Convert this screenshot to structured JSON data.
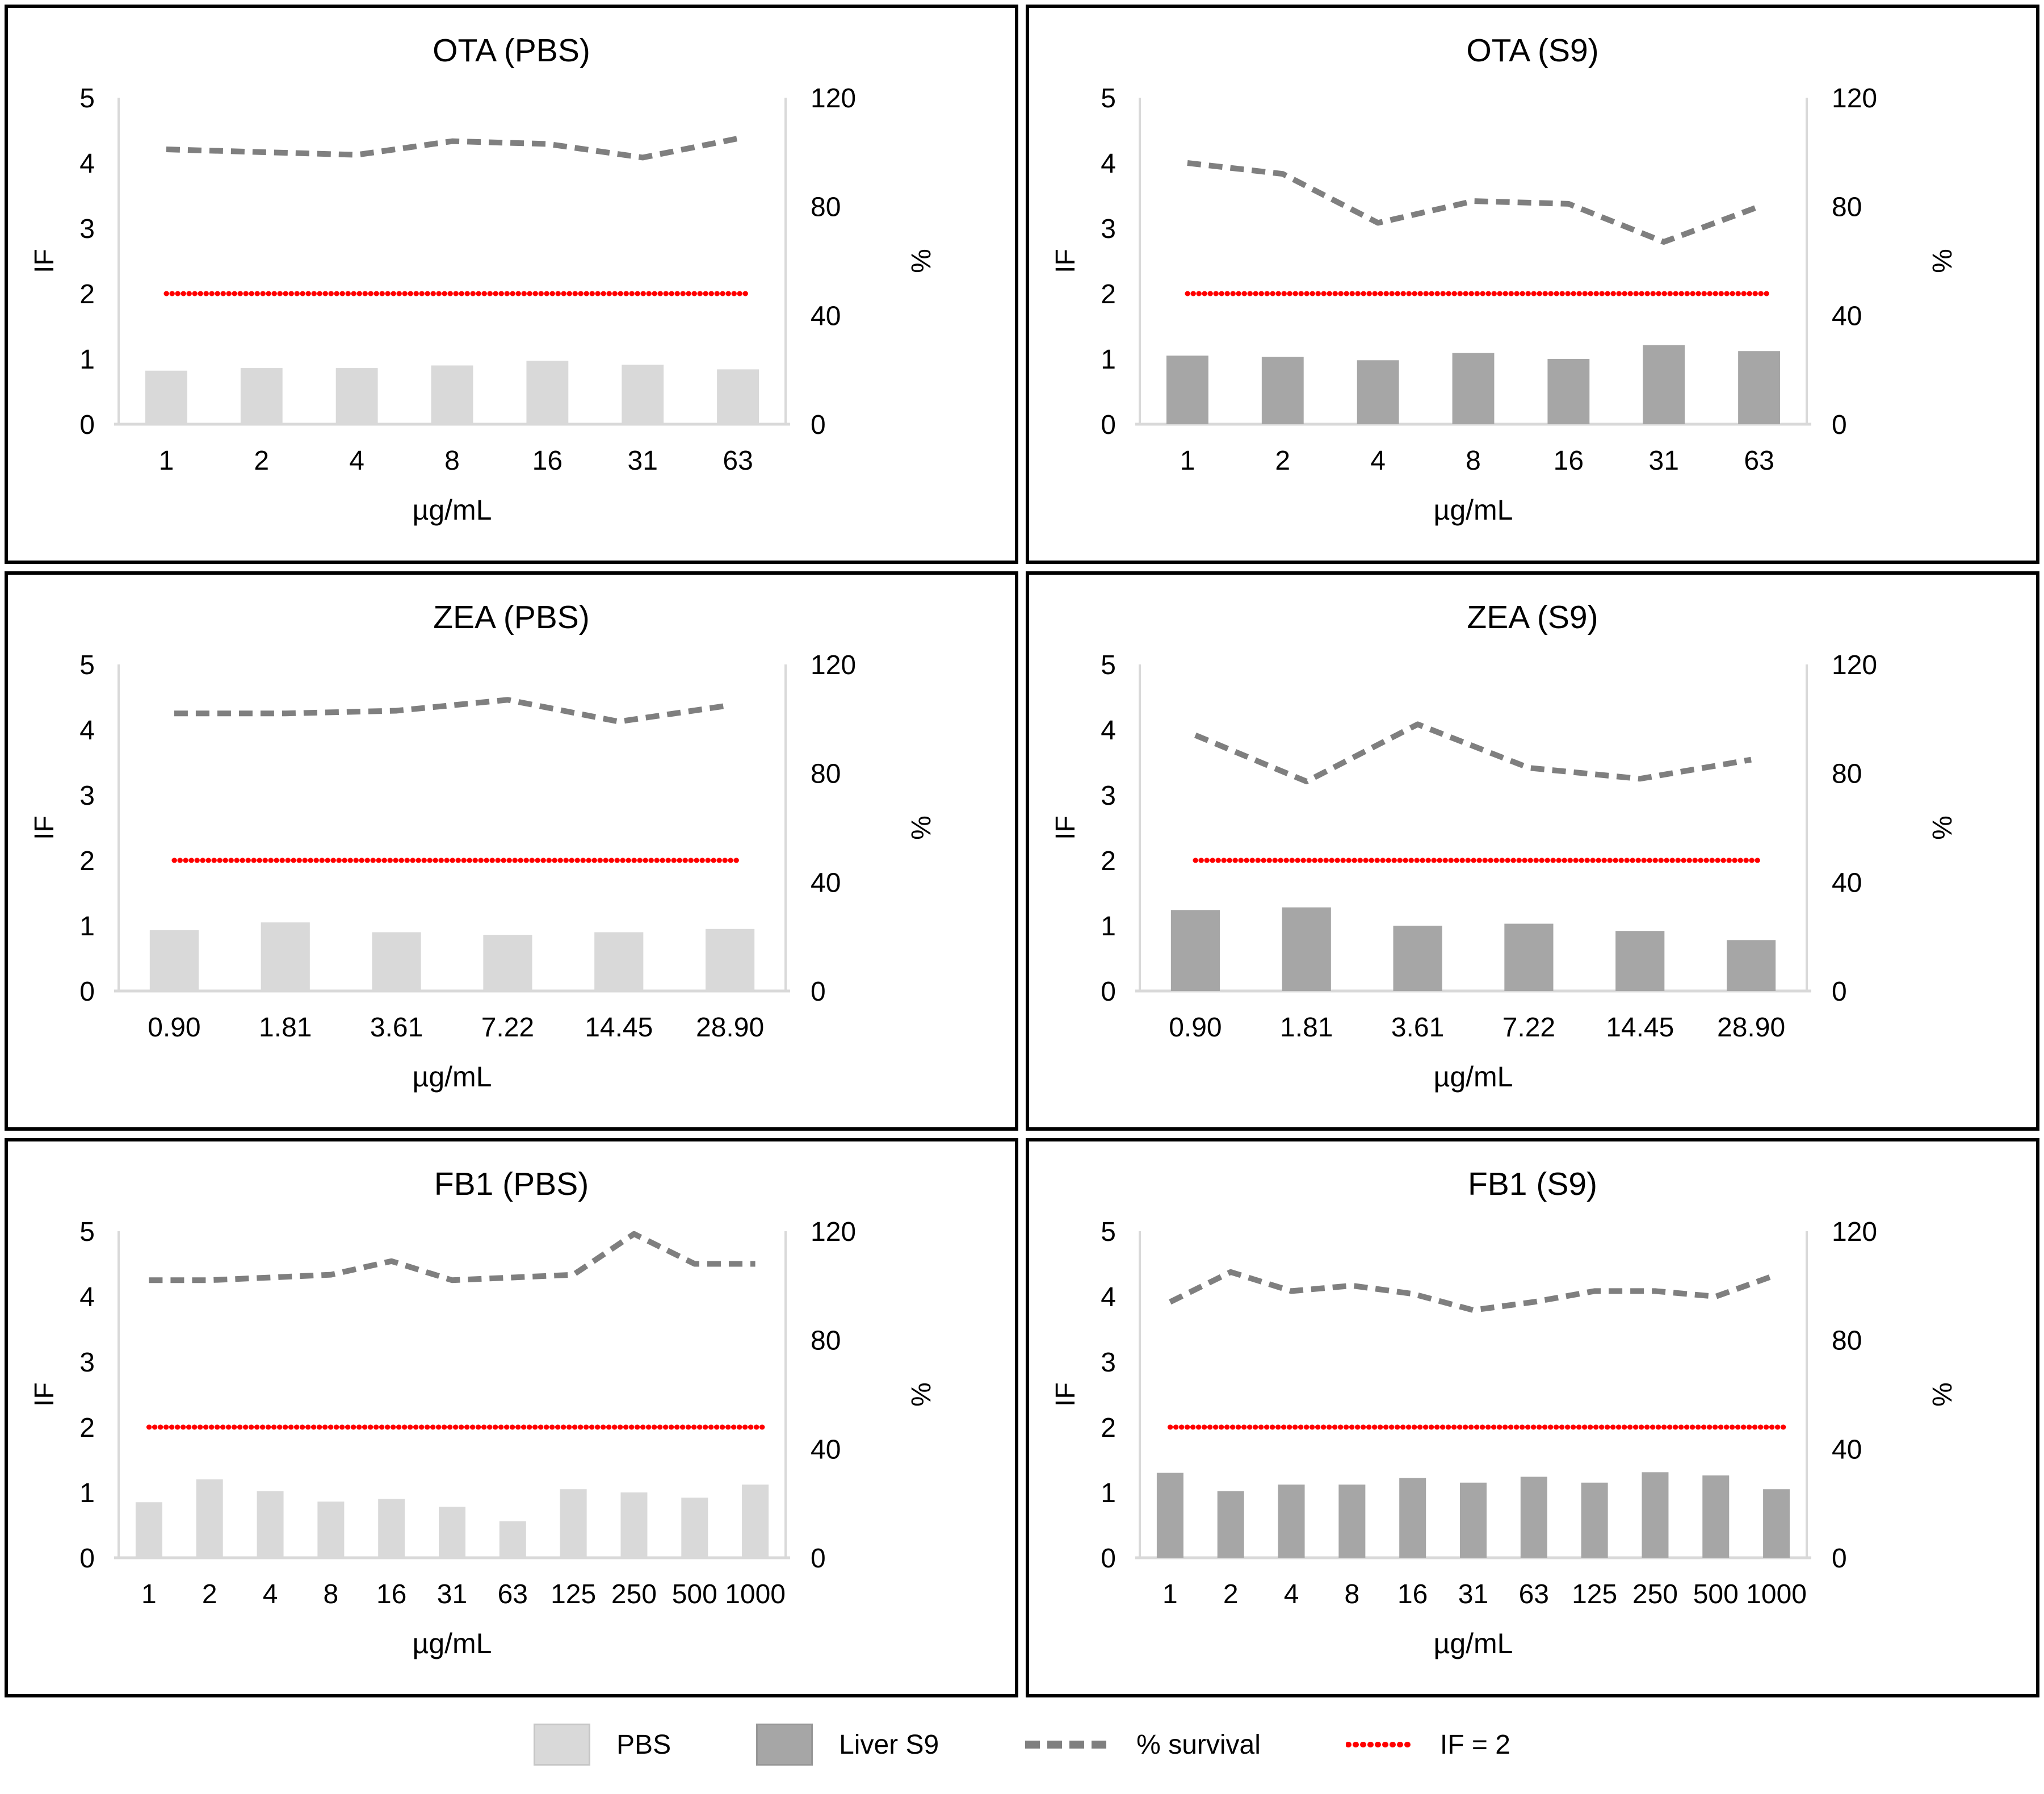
{
  "colors": {
    "pbs_bar": "#d9d9d9",
    "pbs_bar_border": "#c6c6c6",
    "s9_bar": "#a6a6a6",
    "s9_bar_border": "#979797",
    "survival_line": "#7f7f7f",
    "if2_line": "#ff0000",
    "axis_line": "#d9d9d9",
    "text": "#000000",
    "panel_border": "#000000"
  },
  "legend": {
    "items": [
      {
        "label": "PBS",
        "marker": "pbs-swatch"
      },
      {
        "label": "Liver S9",
        "marker": "s9-swatch"
      },
      {
        "label": "% survival",
        "marker": "gray-dashed-line"
      },
      {
        "label": "IF = 2",
        "marker": "red-dotted-line"
      }
    ]
  },
  "chart_data": [
    {
      "type": "bar",
      "title": "OTA (PBS)",
      "xlabel": "µg/mL",
      "ylabel_left": "IF",
      "ylabel_right": "%",
      "ylim_left": [
        0,
        5
      ],
      "yticks_left": [
        0,
        1,
        2,
        3,
        4,
        5
      ],
      "ylim_right": [
        0,
        120
      ],
      "yticks_right": [
        0,
        40,
        80,
        120
      ],
      "grid": false,
      "categories": [
        "1",
        "2",
        "4",
        "8",
        "16",
        "31",
        "63"
      ],
      "series": [
        {
          "name": "PBS",
          "type": "bar",
          "axis": "left",
          "color_key": "pbs_bar",
          "values": [
            0.82,
            0.86,
            0.86,
            0.9,
            0.97,
            0.91,
            0.84
          ]
        },
        {
          "name": "% survival",
          "type": "dashed-line",
          "axis": "right",
          "color_key": "survival_line",
          "values": [
            101,
            100,
            99,
            104,
            103,
            98,
            105
          ]
        },
        {
          "name": "IF = 2",
          "type": "dotted-line",
          "axis": "left",
          "color_key": "if2_line",
          "constant": 2
        }
      ]
    },
    {
      "type": "bar",
      "title": "OTA (S9)",
      "xlabel": "µg/mL",
      "ylabel_left": "IF",
      "ylabel_right": "%",
      "ylim_left": [
        0,
        5
      ],
      "yticks_left": [
        0,
        1,
        2,
        3,
        4,
        5
      ],
      "ylim_right": [
        0,
        120
      ],
      "yticks_right": [
        0,
        40,
        80,
        120
      ],
      "grid": false,
      "categories": [
        "1",
        "2",
        "4",
        "8",
        "16",
        "31",
        "63"
      ],
      "series": [
        {
          "name": "Liver S9",
          "type": "bar",
          "axis": "left",
          "color_key": "s9_bar",
          "values": [
            1.05,
            1.03,
            0.98,
            1.09,
            1.0,
            1.21,
            1.12
          ]
        },
        {
          "name": "% survival",
          "type": "dashed-line",
          "axis": "right",
          "color_key": "survival_line",
          "values": [
            96,
            92,
            74,
            82,
            81,
            67,
            80
          ]
        },
        {
          "name": "IF = 2",
          "type": "dotted-line",
          "axis": "left",
          "color_key": "if2_line",
          "constant": 2
        }
      ]
    },
    {
      "type": "bar",
      "title": "ZEA (PBS)",
      "xlabel": "µg/mL",
      "ylabel_left": "IF",
      "ylabel_right": "%",
      "ylim_left": [
        0,
        5
      ],
      "yticks_left": [
        0,
        1,
        2,
        3,
        4,
        5
      ],
      "ylim_right": [
        0,
        120
      ],
      "yticks_right": [
        0,
        40,
        80,
        120
      ],
      "grid": false,
      "categories": [
        "0.90",
        "1.81",
        "3.61",
        "7.22",
        "14.45",
        "28.90"
      ],
      "series": [
        {
          "name": "PBS",
          "type": "bar",
          "axis": "left",
          "color_key": "pbs_bar",
          "values": [
            0.93,
            1.05,
            0.9,
            0.86,
            0.9,
            0.95
          ]
        },
        {
          "name": "% survival",
          "type": "dashed-line",
          "axis": "right",
          "color_key": "survival_line",
          "values": [
            102,
            102,
            103,
            107,
            99,
            105
          ]
        },
        {
          "name": "IF = 2",
          "type": "dotted-line",
          "axis": "left",
          "color_key": "if2_line",
          "constant": 2
        }
      ]
    },
    {
      "type": "bar",
      "title": "ZEA (S9)",
      "xlabel": "µg/mL",
      "ylabel_left": "IF",
      "ylabel_right": "%",
      "ylim_left": [
        0,
        5
      ],
      "yticks_left": [
        0,
        1,
        2,
        3,
        4,
        5
      ],
      "ylim_right": [
        0,
        120
      ],
      "yticks_right": [
        0,
        40,
        80,
        120
      ],
      "grid": false,
      "categories": [
        "0.90",
        "1.81",
        "3.61",
        "7.22",
        "14.45",
        "28.90"
      ],
      "series": [
        {
          "name": "Liver S9",
          "type": "bar",
          "axis": "left",
          "color_key": "s9_bar",
          "values": [
            1.24,
            1.28,
            1.0,
            1.03,
            0.92,
            0.78
          ]
        },
        {
          "name": "% survival",
          "type": "dashed-line",
          "axis": "right",
          "color_key": "survival_line",
          "values": [
            94,
            77,
            98,
            82,
            78,
            85
          ]
        },
        {
          "name": "IF = 2",
          "type": "dotted-line",
          "axis": "left",
          "color_key": "if2_line",
          "constant": 2
        }
      ]
    },
    {
      "type": "bar",
      "title": "FB1 (PBS)",
      "xlabel": "µg/mL",
      "ylabel_left": "IF",
      "ylabel_right": "%",
      "ylim_left": [
        0,
        5
      ],
      "yticks_left": [
        0,
        1,
        2,
        3,
        4,
        5
      ],
      "ylim_right": [
        0,
        120
      ],
      "yticks_right": [
        0,
        40,
        80,
        120
      ],
      "grid": false,
      "categories": [
        "1",
        "2",
        "4",
        "8",
        "16",
        "31",
        "63",
        "125",
        "250",
        "500",
        "1000"
      ],
      "series": [
        {
          "name": "PBS",
          "type": "bar",
          "axis": "left",
          "color_key": "pbs_bar",
          "values": [
            0.85,
            1.2,
            1.02,
            0.86,
            0.9,
            0.78,
            0.56,
            1.05,
            1.0,
            0.92,
            1.12
          ]
        },
        {
          "name": "% survival",
          "type": "dashed-line",
          "axis": "right",
          "color_key": "survival_line",
          "values": [
            102,
            102,
            103,
            104,
            109,
            102,
            103,
            104,
            119,
            108,
            108
          ]
        },
        {
          "name": "IF = 2",
          "type": "dotted-line",
          "axis": "left",
          "color_key": "if2_line",
          "constant": 2
        }
      ]
    },
    {
      "type": "bar",
      "title": "FB1 (S9)",
      "xlabel": "µg/mL",
      "ylabel_left": "IF",
      "ylabel_right": "%",
      "ylim_left": [
        0,
        5
      ],
      "yticks_left": [
        0,
        1,
        2,
        3,
        4,
        5
      ],
      "ylim_right": [
        0,
        120
      ],
      "yticks_right": [
        0,
        40,
        80,
        120
      ],
      "grid": false,
      "categories": [
        "1",
        "2",
        "4",
        "8",
        "16",
        "31",
        "63",
        "125",
        "250",
        "500",
        "1000"
      ],
      "series": [
        {
          "name": "Liver S9",
          "type": "bar",
          "axis": "left",
          "color_key": "s9_bar",
          "values": [
            1.3,
            1.02,
            1.12,
            1.12,
            1.22,
            1.15,
            1.24,
            1.15,
            1.31,
            1.26,
            1.05
          ]
        },
        {
          "name": "% survival",
          "type": "dashed-line",
          "axis": "right",
          "color_key": "survival_line",
          "values": [
            94,
            105,
            98,
            100,
            97,
            91,
            94,
            98,
            98,
            96,
            104
          ]
        },
        {
          "name": "IF = 2",
          "type": "dotted-line",
          "axis": "left",
          "color_key": "if2_line",
          "constant": 2
        }
      ]
    }
  ]
}
